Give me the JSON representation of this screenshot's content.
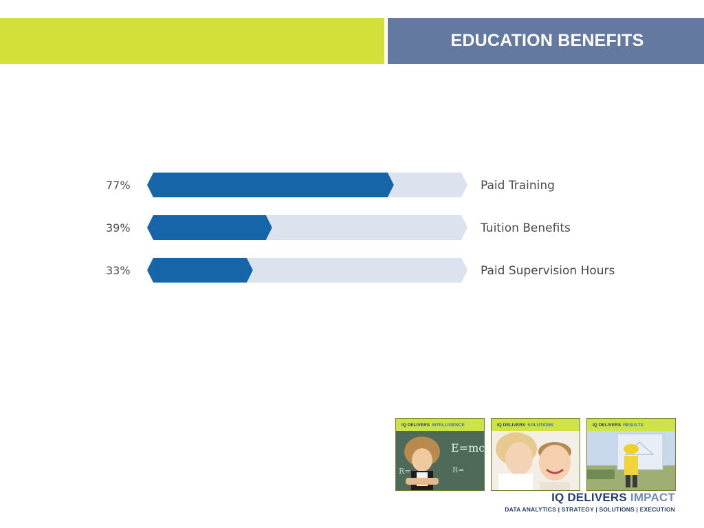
{
  "colors": {
    "header_green": "#d4e03a",
    "header_blue": "#6479a1",
    "bar_fill": "#1565a8",
    "bar_track": "#dde2ef"
  },
  "header": {
    "title": "EDUCATION BENEFITS"
  },
  "chart_data": {
    "type": "bar",
    "orientation": "horizontal",
    "categories": [
      "Paid Training",
      "Tuition Benefits",
      "Paid Supervision Hours"
    ],
    "values": [
      77,
      39,
      33
    ],
    "value_labels": [
      "77%",
      "39%",
      "33%"
    ],
    "xlim": [
      0,
      100
    ],
    "title": "",
    "xlabel": "",
    "ylabel": "",
    "grid": false,
    "legend": "none"
  },
  "tiles": [
    {
      "head_main": "IQ DELIVERS",
      "head_accent": "INTELLIGENCE",
      "image": "child-chalkboard-photo",
      "chalk": "E=mc"
    },
    {
      "head_main": "IQ DELIVERS",
      "head_accent": "SOLUTIONS",
      "image": "children-whispering-photo"
    },
    {
      "head_main": "IQ DELIVERS",
      "head_accent": "RESULTS",
      "image": "child-hardhat-blueprint-photo"
    }
  ],
  "brand": {
    "main": "IQ DELIVERS",
    "accent": "IMPACT",
    "tagline": "DATA ANALYTICS | STRATEGY | SOLUTIONS | EXECUTION"
  }
}
